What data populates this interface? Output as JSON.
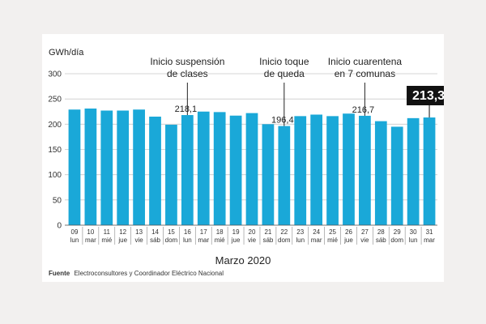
{
  "chart_data": {
    "type": "bar",
    "ylabel": "GWh/día",
    "xlabel": "Marzo 2020",
    "ylim": [
      0,
      300
    ],
    "yticks": [
      "0",
      "50",
      "100",
      "150",
      "200",
      "250",
      "300"
    ],
    "grid": true,
    "bar_color": "#1aa8d8",
    "categories": [
      "09",
      "10",
      "11",
      "12",
      "13",
      "14",
      "15",
      "16",
      "17",
      "18",
      "19",
      "20",
      "21",
      "22",
      "23",
      "24",
      "25",
      "26",
      "27",
      "28",
      "29",
      "30",
      "31"
    ],
    "weekdays": [
      "lun",
      "mar",
      "mié",
      "jue",
      "vie",
      "sáb",
      "dom",
      "lun",
      "mar",
      "mié",
      "jue",
      "vie",
      "sáb",
      "dom",
      "lun",
      "mar",
      "mié",
      "jue",
      "vie",
      "sáb",
      "dom",
      "lun",
      "mar"
    ],
    "values": [
      229,
      231,
      227,
      227,
      229,
      215,
      199,
      218.1,
      225,
      224,
      217,
      222,
      200,
      196.4,
      216,
      219,
      216,
      221,
      216.7,
      206,
      195,
      212,
      213.3
    ],
    "value_labels": [
      {
        "index": 7,
        "text": "218,1"
      },
      {
        "index": 13,
        "text": "196,4"
      },
      {
        "index": 18,
        "text": "216,7"
      }
    ],
    "highlight": {
      "index": 22,
      "text": "213,3"
    },
    "annotations": [
      {
        "index": 7,
        "lines": [
          "Inicio suspensión",
          "de clases"
        ]
      },
      {
        "index": 13,
        "lines": [
          "Inicio toque",
          "de queda"
        ]
      },
      {
        "index": 18,
        "lines": [
          "Inicio cuarentena",
          "en 7 comunas"
        ]
      }
    ]
  },
  "source": {
    "label": "Fuente",
    "text": "Electroconsultores y Coordinador Eléctrico Nacional"
  }
}
